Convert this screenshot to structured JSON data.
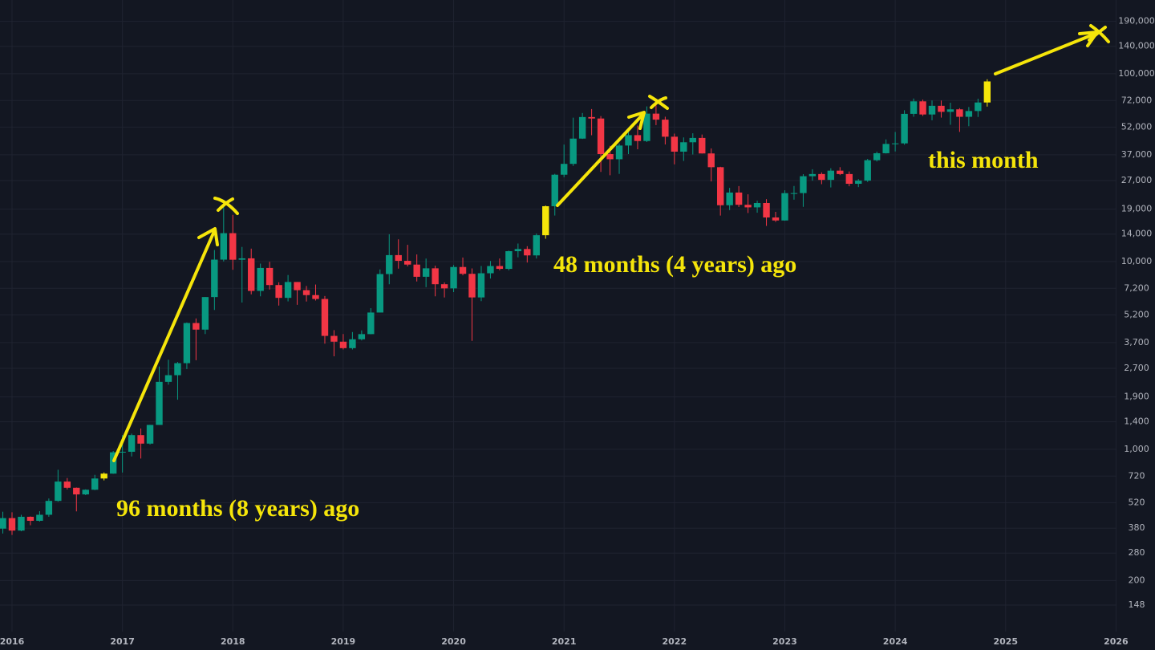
{
  "chart_data": {
    "type": "candlestick",
    "categories": [
      null,
      "2016",
      null,
      null,
      null,
      null,
      null,
      null,
      null,
      null,
      null,
      null,
      null,
      "2017",
      null,
      null,
      null,
      null,
      null,
      null,
      null,
      null,
      null,
      null,
      null,
      "2018",
      null,
      null,
      null,
      null,
      null,
      null,
      null,
      null,
      null,
      null,
      null,
      "2019",
      null,
      null,
      null,
      null,
      null,
      null,
      null,
      null,
      null,
      null,
      null,
      "2020",
      null,
      null,
      null,
      null,
      null,
      null,
      null,
      null,
      null,
      null,
      null,
      "2021",
      null,
      null,
      null,
      null,
      null,
      null,
      null,
      null,
      null,
      null,
      null,
      "2022",
      null,
      null,
      null,
      null,
      null,
      null,
      null,
      null,
      null,
      null,
      null,
      "2023",
      null,
      null,
      null,
      null,
      null,
      null,
      null,
      null,
      null,
      null,
      null,
      "2024",
      null,
      null,
      null,
      null,
      null,
      null,
      null,
      null,
      null,
      null,
      null,
      "2025",
      null,
      null,
      null,
      null,
      null,
      null,
      null,
      null,
      null,
      null,
      null,
      "2026"
    ],
    "open": [
      378,
      430,
      369,
      437,
      416,
      448,
      531,
      673,
      624,
      575,
      609,
      699,
      742,
      964,
      970,
      1190,
      1072,
      1348,
      2286,
      2481,
      2875,
      4703,
      4338,
      6468,
      10233,
      14157,
      10221,
      10397,
      6973,
      9240,
      7494,
      6404,
      7780,
      7037,
      6625,
      6317,
      4017,
      3742,
      3457,
      3854,
      4105,
      5350,
      8574,
      10817,
      10085,
      9630,
      8293,
      9199,
      7569,
      7193,
      9350,
      8599,
      6438,
      8658,
      9461,
      9137,
      11351,
      11655,
      10779,
      13804,
      19700,
      28990,
      33114,
      45137,
      58800,
      57750,
      37332,
      35045,
      41462,
      47100,
      43824,
      61300,
      56950,
      46200,
      38466,
      43160,
      45510,
      37630,
      31792,
      19942,
      23296,
      20050,
      19423,
      20490,
      17164,
      16542,
      23125,
      23142,
      28465,
      29233,
      27210,
      30472,
      29230,
      25940,
      26962,
      34640,
      37723,
      42284,
      42580,
      61130,
      71280,
      60672,
      67491,
      62678,
      64626,
      58974,
      63301,
      70292,
      null,
      null,
      null,
      null,
      null,
      null,
      null,
      null,
      null,
      null,
      null,
      null,
      null,
      null
    ],
    "high": [
      465,
      462,
      448,
      439,
      468,
      547,
      778,
      703,
      626,
      612,
      731,
      753,
      979,
      1191,
      1212,
      1290,
      1350,
      2760,
      2999,
      2916,
      4737,
      4975,
      6470,
      11517,
      19783,
      17712,
      11958,
      11711,
      9745,
      9964,
      7754,
      8474,
      7780,
      7410,
      7540,
      6552,
      4309,
      4110,
      4210,
      4296,
      5642,
      9074,
      13970,
      13129,
      12273,
      10905,
      10370,
      9505,
      7743,
      9578,
      10500,
      9188,
      9468,
      10067,
      10380,
      11434,
      12468,
      12067,
      14100,
      19863,
      29300,
      41950,
      58352,
      61788,
      64854,
      59500,
      41330,
      42448,
      50500,
      52920,
      67000,
      69000,
      59041,
      47990,
      45800,
      48190,
      47444,
      40023,
      31957,
      24668,
      25211,
      22799,
      21085,
      21480,
      18387,
      23960,
      25250,
      29184,
      31000,
      29820,
      31390,
      31804,
      30176,
      27488,
      35198,
      38450,
      44700,
      48969,
      63913,
      73794,
      72797,
      71979,
      71997,
      70080,
      65593,
      66500,
      73620,
      93477,
      null,
      null,
      null,
      null,
      null,
      null,
      null,
      null,
      null,
      null,
      null,
      null,
      null,
      null
    ],
    "low": [
      356,
      350,
      366,
      394,
      412,
      437,
      526,
      611,
      467,
      570,
      606,
      683,
      740,
      752,
      916,
      893,
      1060,
      1348,
      2209,
      1837,
      2675,
      2981,
      4109,
      5520,
      10010,
      9035,
      6048,
      6683,
      6526,
      7090,
      5826,
      6133,
      5880,
      6123,
      6200,
      3652,
      3128,
      3400,
      3400,
      3800,
      4096,
      5350,
      7565,
      9163,
      9421,
      7830,
      7300,
      6526,
      6435,
      6871,
      8445,
      3782,
      6150,
      8117,
      8975,
      8977,
      10525,
      9875,
      10374,
      13219,
      17572,
      28130,
      32296,
      44950,
      47044,
      30000,
      28805,
      29278,
      37332,
      39600,
      43283,
      53256,
      42000,
      32917,
      34322,
      37155,
      37578,
      26700,
      17567,
      18781,
      19520,
      18125,
      18190,
      15476,
      16256,
      16500,
      21351,
      19549,
      26942,
      25811,
      24800,
      28861,
      25166,
      24901,
      26538,
      34100,
      37600,
      38555,
      41884,
      59005,
      59600,
      56552,
      58402,
      53485,
      49000,
      52550,
      58867,
      66832,
      null,
      null,
      null,
      null,
      null,
      null,
      null,
      null,
      null,
      null,
      null,
      null,
      null,
      null
    ],
    "close": [
      430,
      369,
      437,
      416,
      448,
      531,
      673,
      624,
      575,
      609,
      699,
      742,
      964,
      970,
      1190,
      1072,
      1348,
      2286,
      2481,
      2875,
      4703,
      4338,
      6468,
      10233,
      14157,
      10221,
      10397,
      6973,
      9240,
      7494,
      6404,
      7780,
      7037,
      6625,
      6317,
      4017,
      3742,
      3457,
      3854,
      4105,
      5350,
      8574,
      10817,
      10085,
      9630,
      8293,
      9199,
      7569,
      7193,
      9350,
      8599,
      6438,
      8658,
      9461,
      9137,
      11351,
      11655,
      10779,
      13804,
      19700,
      28990,
      33114,
      45137,
      58800,
      57750,
      37332,
      35045,
      41462,
      47100,
      43824,
      61300,
      56950,
      46200,
      38466,
      43160,
      45510,
      37630,
      31792,
      19942,
      23296,
      20050,
      19423,
      20490,
      17164,
      16542,
      23125,
      23142,
      28465,
      29233,
      27210,
      30472,
      29230,
      25940,
      26962,
      34640,
      37723,
      42284,
      42580,
      61130,
      71280,
      60672,
      67491,
      62678,
      64626,
      58974,
      63301,
      70292,
      91000,
      null,
      null,
      null,
      null,
      null,
      null,
      null,
      null,
      null,
      null,
      null,
      null,
      null,
      null
    ],
    "up_color": "#089981",
    "down_color": "#f23645",
    "highlight": {
      "color": "#f5e50a",
      "indices": [
        11,
        59,
        107
      ]
    },
    "log_scale": true,
    "grid": true,
    "ylim": [
      107,
      247000
    ],
    "yticks": [
      148,
      200,
      280,
      380,
      520,
      720,
      {
        "value": 1000,
        "label": "1,000"
      },
      {
        "value": 1400,
        "label": "1,400"
      },
      {
        "value": 1900,
        "label": "1,900"
      },
      {
        "value": 2700,
        "label": "2,700"
      },
      {
        "value": 3700,
        "label": "3,700"
      },
      {
        "value": 5200,
        "label": "5,200"
      },
      {
        "value": 7200,
        "label": "7,200"
      },
      {
        "value": 10000,
        "label": "10,000"
      },
      {
        "value": 14000,
        "label": "14,000"
      },
      {
        "value": 19000,
        "label": "19,000"
      },
      {
        "value": 27000,
        "label": "27,000"
      },
      {
        "value": 37000,
        "label": "37,000"
      },
      {
        "value": 52000,
        "label": "52,000"
      },
      {
        "value": 72000,
        "label": "72,000"
      },
      {
        "value": 100000,
        "label": "100,000"
      },
      {
        "value": 140000,
        "label": "140,000"
      },
      {
        "value": 190000,
        "label": "190,000"
      }
    ],
    "annotations": [
      "96 months (8 years) ago",
      "48 months (4 years) ago",
      "this month"
    ]
  }
}
